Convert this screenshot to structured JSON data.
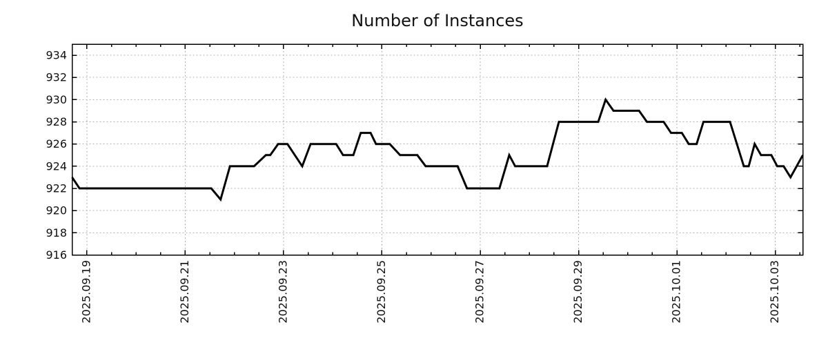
{
  "title": "Number of Instances",
  "chart_data": {
    "type": "line",
    "title": "Number of Instances",
    "xlabel": "",
    "ylabel": "",
    "x_unit": "days relative to 2025.09.19 (tick dates shown on axis)",
    "xlim": [
      -0.3,
      14.56
    ],
    "ylim": [
      916,
      935
    ],
    "grid": true,
    "legend_position": "none",
    "yticks": [
      916,
      918,
      920,
      922,
      924,
      926,
      928,
      930,
      932,
      934
    ],
    "xticks": [
      {
        "pos": 0,
        "label": "2025.09.19"
      },
      {
        "pos": 2,
        "label": "2025.09.21"
      },
      {
        "pos": 4,
        "label": "2025.09.23"
      },
      {
        "pos": 6,
        "label": "2025.09.25"
      },
      {
        "pos": 8,
        "label": "2025.09.27"
      },
      {
        "pos": 10,
        "label": "2025.09.29"
      },
      {
        "pos": 12,
        "label": "2025.10.01"
      },
      {
        "pos": 14,
        "label": "2025.10.03"
      }
    ],
    "minor_xtick_interval": 0.5,
    "series": [
      {
        "name": "instances",
        "color": "#000000",
        "points": [
          [
            -0.3,
            923
          ],
          [
            -0.15,
            922
          ],
          [
            2.53,
            922
          ],
          [
            2.72,
            921
          ],
          [
            2.91,
            924
          ],
          [
            3.4,
            924
          ],
          [
            3.64,
            925
          ],
          [
            3.73,
            925
          ],
          [
            3.89,
            926
          ],
          [
            4.08,
            926
          ],
          [
            4.38,
            924
          ],
          [
            4.55,
            926
          ],
          [
            5.07,
            926
          ],
          [
            5.21,
            925
          ],
          [
            5.42,
            925
          ],
          [
            5.57,
            927
          ],
          [
            5.77,
            927
          ],
          [
            5.88,
            926
          ],
          [
            6.16,
            926
          ],
          [
            6.37,
            925
          ],
          [
            6.72,
            925
          ],
          [
            6.89,
            924
          ],
          [
            7.54,
            924
          ],
          [
            7.73,
            922
          ],
          [
            8.39,
            922
          ],
          [
            8.59,
            925
          ],
          [
            8.71,
            924
          ],
          [
            9.36,
            924
          ],
          [
            9.6,
            928
          ],
          [
            10.4,
            928
          ],
          [
            10.55,
            930
          ],
          [
            10.71,
            929
          ],
          [
            11.23,
            929
          ],
          [
            11.39,
            928
          ],
          [
            11.73,
            928
          ],
          [
            11.88,
            927
          ],
          [
            12.1,
            927
          ],
          [
            12.24,
            926
          ],
          [
            12.4,
            926
          ],
          [
            12.54,
            928
          ],
          [
            13.08,
            928
          ],
          [
            13.36,
            924
          ],
          [
            13.46,
            924
          ],
          [
            13.58,
            926
          ],
          [
            13.71,
            925
          ],
          [
            13.92,
            925
          ],
          [
            14.04,
            924
          ],
          [
            14.17,
            924
          ],
          [
            14.31,
            923
          ],
          [
            14.56,
            925
          ]
        ]
      }
    ],
    "colors": {
      "line": "#000000",
      "grid": "#b0b0b0",
      "border": "#000000",
      "text": "#111111",
      "background": "#ffffff"
    }
  }
}
